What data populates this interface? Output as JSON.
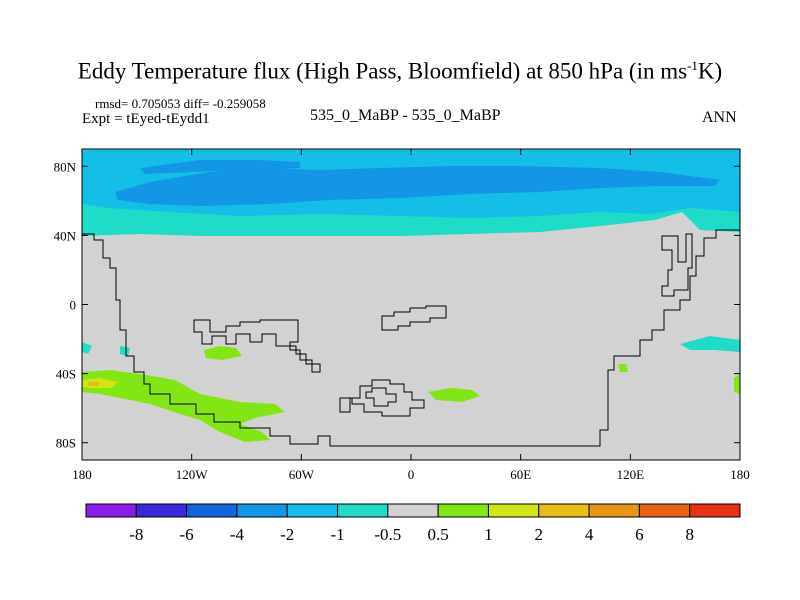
{
  "title": {
    "main": "Eddy Temperature flux (High Pass, Bloomfield) at 850 hPa (in ms",
    "sup": "-1",
    "tail": "K)"
  },
  "stats": {
    "rmsd": "rmsd= 0.705053 diff= -0.259058",
    "expt": "Expt = tEyed-tEydd1"
  },
  "case_label": "535_0_MaBP - 535_0_MaBP",
  "season": "ANN",
  "axes": {
    "lat_ticks": [
      "80N",
      "40N",
      "0",
      "40S",
      "80S"
    ],
    "lon_ticks": [
      "180",
      "120W",
      "60W",
      "0",
      "60E",
      "120E",
      "180"
    ]
  },
  "colorbar": {
    "labels": [
      "-8",
      "-6",
      "-4",
      "-2",
      "-1",
      "-0.5",
      "0.5",
      "1",
      "2",
      "4",
      "6",
      "8"
    ],
    "colors": [
      "#8a1ee6",
      "#3c28dc",
      "#1464dc",
      "#1496e6",
      "#14bee6",
      "#1edcc8",
      "#d2d2d2",
      "#82e614",
      "#d2e614",
      "#e6be14",
      "#e69614",
      "#e66414",
      "#e63214"
    ]
  },
  "map_colors": {
    "background": "#d2d2d2",
    "coast": "#000000"
  }
}
